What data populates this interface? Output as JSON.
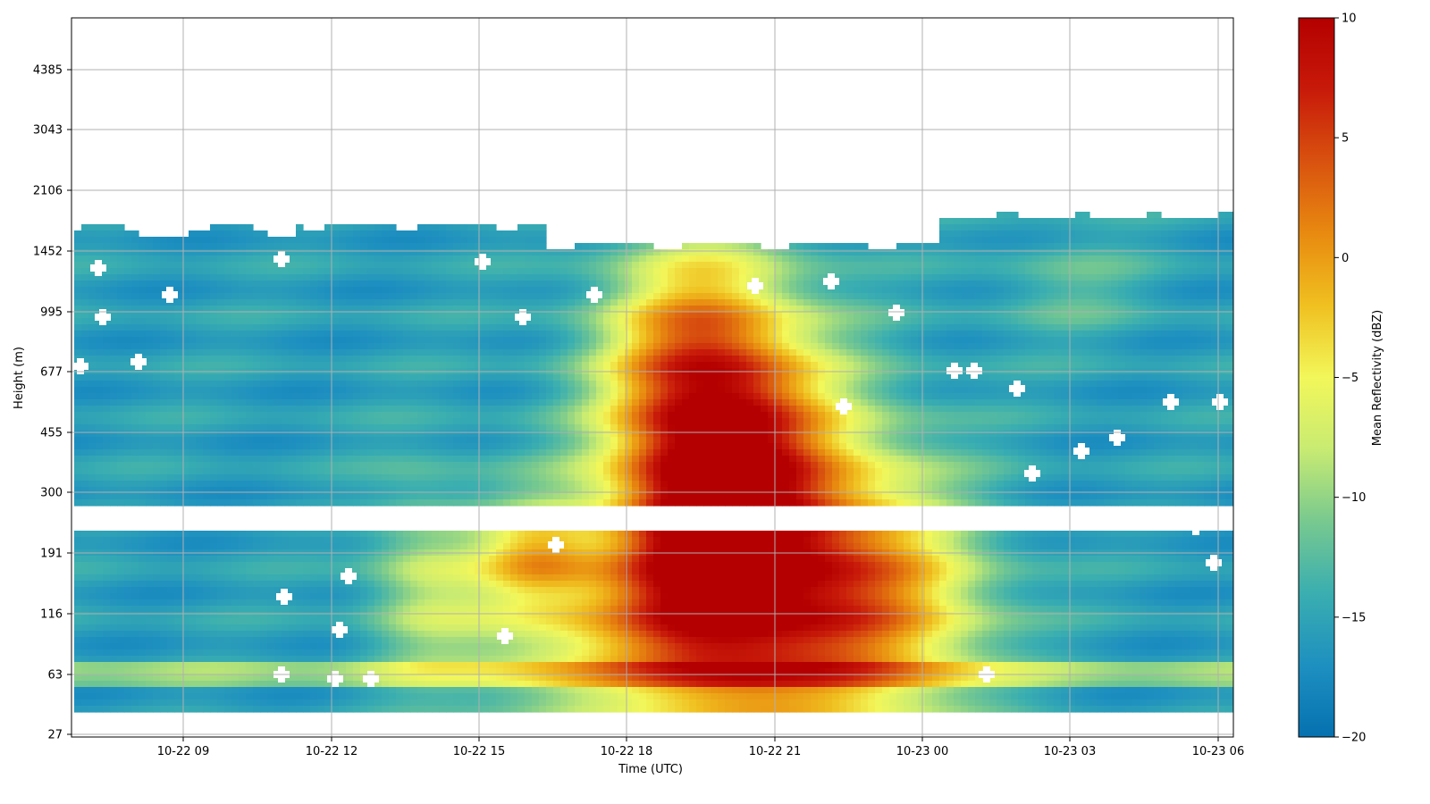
{
  "chart_data": {
    "type": "heatmap",
    "title": "",
    "xlabel": "Time (UTC)",
    "ylabel": "Height (m)",
    "x_ticks": [
      "10-22 09",
      "10-22 12",
      "10-22 15",
      "10-22 18",
      "10-22 21",
      "10-23 00",
      "10-23 03",
      "10-23 06"
    ],
    "y_ticks": [
      "27",
      "63",
      "116",
      "191",
      "300",
      "455",
      "677",
      "995",
      "1452",
      "2106",
      "3043",
      "4385"
    ],
    "grid": true,
    "colorbar": {
      "label": "Mean Reflectivity (dBZ)",
      "range": [
        -20,
        10
      ],
      "ticks": [
        "10",
        "5",
        "0",
        "−5",
        "−10",
        "−15",
        "−20"
      ],
      "colormap": [
        "#0571b0",
        "#1e90c0",
        "#3aaeb0",
        "#78c98f",
        "#c8eb72",
        "#f2f75a",
        "#f0c020",
        "#e88a10",
        "#d9520f",
        "#c81a0a",
        "#b40000"
      ]
    },
    "features": {
      "background_dbz": -15,
      "near_surface_band_dbz": -10,
      "main_cell_peak_dbz": 10,
      "main_cell_peak_time": "10-22 19:30",
      "gap_between_heights_m": [
        230,
        265
      ]
    }
  }
}
